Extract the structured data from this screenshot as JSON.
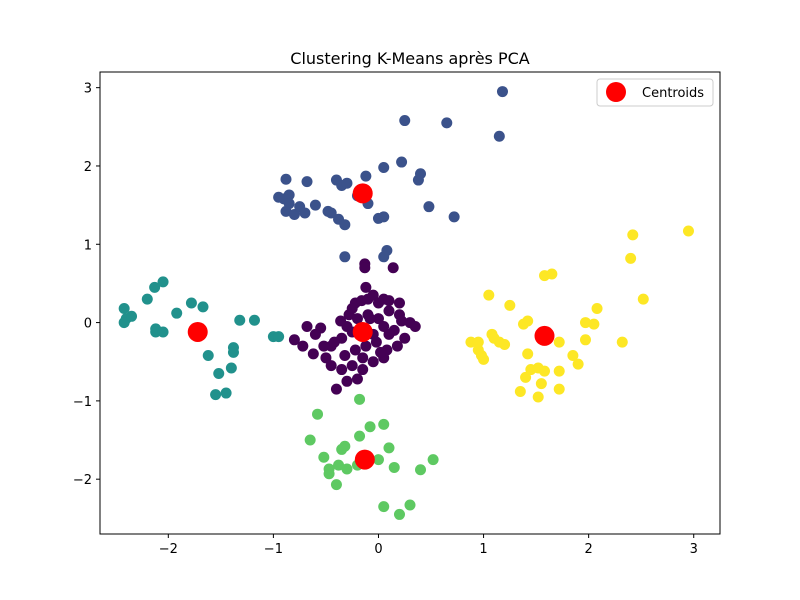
{
  "chart_data": {
    "type": "scatter",
    "title": "Clustering K-Means après PCA",
    "xlabel": "",
    "ylabel": "",
    "xlim": [
      -2.65,
      3.25
    ],
    "ylim": [
      -2.7,
      3.2
    ],
    "xticks": [
      -2,
      -1,
      0,
      1,
      2,
      3
    ],
    "yticks": [
      -2,
      -1,
      0,
      1,
      2,
      3
    ],
    "xtick_labels": [
      "−2",
      "−1",
      "0",
      "1",
      "2",
      "3"
    ],
    "ytick_labels": [
      "−2",
      "−1",
      "0",
      "1",
      "2",
      "3"
    ],
    "grid": false,
    "legend": {
      "position": "top-right",
      "label": "Centroids",
      "color": "#ff0000"
    },
    "clusters": [
      {
        "color": "#440154",
        "points": [
          [
            -0.28,
            0.1
          ],
          [
            -0.22,
            0.25
          ],
          [
            -0.16,
            0.28
          ],
          [
            -0.1,
            0.3
          ],
          [
            -0.05,
            0.35
          ],
          [
            0.0,
            0.25
          ],
          [
            0.05,
            0.3
          ],
          [
            -0.12,
            0.45
          ],
          [
            0.1,
            0.28
          ],
          [
            -0.3,
            -0.05
          ],
          [
            -0.2,
            0.05
          ],
          [
            -0.1,
            0.1
          ],
          [
            0.0,
            0.05
          ],
          [
            0.1,
            0.15
          ],
          [
            0.2,
            0.1
          ],
          [
            0.3,
            0.0
          ],
          [
            -0.55,
            -0.07
          ],
          [
            -0.45,
            -0.3
          ],
          [
            -0.35,
            -0.2
          ],
          [
            -0.25,
            -0.12
          ],
          [
            -0.15,
            -0.1
          ],
          [
            -0.05,
            -0.15
          ],
          [
            0.05,
            -0.05
          ],
          [
            0.15,
            -0.1
          ],
          [
            0.25,
            -0.2
          ],
          [
            -0.72,
            -0.3
          ],
          [
            -0.62,
            -0.4
          ],
          [
            -0.52,
            -0.3
          ],
          [
            -0.42,
            -0.25
          ],
          [
            -0.32,
            -0.42
          ],
          [
            -0.22,
            -0.35
          ],
          [
            -0.12,
            -0.3
          ],
          [
            -0.02,
            -0.25
          ],
          [
            0.08,
            -0.35
          ],
          [
            0.18,
            -0.3
          ],
          [
            -0.45,
            -0.55
          ],
          [
            -0.35,
            -0.6
          ],
          [
            -0.25,
            -0.55
          ],
          [
            -0.15,
            -0.45
          ],
          [
            -0.05,
            -0.5
          ],
          [
            0.05,
            -0.45
          ],
          [
            -0.3,
            -0.75
          ],
          [
            -0.2,
            -0.72
          ],
          [
            -0.15,
            -0.6
          ],
          [
            -0.4,
            -0.85
          ],
          [
            -0.6,
            -0.15
          ],
          [
            0.22,
            0.02
          ],
          [
            -0.13,
            0.75
          ],
          [
            -0.13,
            0.7
          ],
          [
            0.14,
            0.7
          ],
          [
            -0.8,
            -0.22
          ],
          [
            -0.68,
            -0.05
          ],
          [
            0.35,
            -0.05
          ],
          [
            0.1,
            -0.15
          ],
          [
            -0.08,
            0.05
          ],
          [
            -0.36,
            0.02
          ],
          [
            0.02,
            -0.38
          ],
          [
            -0.5,
            -0.45
          ],
          [
            0.2,
            0.25
          ],
          [
            -0.25,
            0.18
          ]
        ]
      },
      {
        "color": "#3b528b",
        "points": [
          [
            -0.88,
            1.83
          ],
          [
            -0.85,
            1.63
          ],
          [
            -0.9,
            1.58
          ],
          [
            -0.85,
            1.52
          ],
          [
            -0.88,
            1.42
          ],
          [
            -0.8,
            1.38
          ],
          [
            -0.75,
            1.48
          ],
          [
            -0.68,
            1.8
          ],
          [
            -0.6,
            1.5
          ],
          [
            -0.48,
            1.42
          ],
          [
            -0.45,
            1.4
          ],
          [
            -0.4,
            1.82
          ],
          [
            -0.35,
            1.75
          ],
          [
            -0.3,
            1.78
          ],
          [
            -0.38,
            1.32
          ],
          [
            -0.32,
            1.25
          ],
          [
            -0.2,
            1.62
          ],
          [
            -0.12,
            1.87
          ],
          [
            -0.1,
            1.52
          ],
          [
            0.0,
            1.33
          ],
          [
            0.05,
            1.35
          ],
          [
            0.05,
            1.98
          ],
          [
            0.22,
            2.05
          ],
          [
            0.25,
            2.58
          ],
          [
            0.38,
            1.82
          ],
          [
            0.4,
            1.9
          ],
          [
            0.48,
            1.48
          ],
          [
            0.65,
            2.55
          ],
          [
            0.72,
            1.35
          ],
          [
            1.15,
            2.38
          ],
          [
            1.18,
            2.95
          ],
          [
            -0.32,
            0.84
          ],
          [
            0.05,
            0.84
          ],
          [
            0.08,
            0.92
          ],
          [
            -0.95,
            1.6
          ],
          [
            -0.7,
            1.4
          ]
        ]
      },
      {
        "color": "#21918c",
        "points": [
          [
            -2.42,
            0.18
          ],
          [
            -2.4,
            0.05
          ],
          [
            -2.42,
            0.0
          ],
          [
            -2.35,
            0.08
          ],
          [
            -2.2,
            0.3
          ],
          [
            -2.13,
            0.45
          ],
          [
            -2.05,
            0.52
          ],
          [
            -1.92,
            0.12
          ],
          [
            -2.12,
            -0.08
          ],
          [
            -2.12,
            -0.12
          ],
          [
            -2.05,
            -0.12
          ],
          [
            -1.78,
            0.25
          ],
          [
            -1.67,
            0.2
          ],
          [
            -1.75,
            -0.1
          ],
          [
            -1.62,
            -0.42
          ],
          [
            -1.52,
            -0.65
          ],
          [
            -1.55,
            -0.92
          ],
          [
            -1.45,
            -0.9
          ],
          [
            -1.4,
            -0.58
          ],
          [
            -1.38,
            -0.38
          ],
          [
            -1.38,
            -0.32
          ],
          [
            -1.32,
            0.03
          ],
          [
            -1.18,
            0.03
          ],
          [
            -1.0,
            -0.18
          ],
          [
            -0.95,
            -0.18
          ]
        ]
      },
      {
        "color": "#5ec962",
        "points": [
          [
            -0.58,
            -1.17
          ],
          [
            -0.65,
            -1.5
          ],
          [
            -0.52,
            -1.72
          ],
          [
            -0.47,
            -1.87
          ],
          [
            -0.47,
            -1.93
          ],
          [
            -0.4,
            -2.07
          ],
          [
            -0.38,
            -1.82
          ],
          [
            -0.32,
            -1.58
          ],
          [
            -0.3,
            -1.87
          ],
          [
            -0.35,
            -1.62
          ],
          [
            -0.18,
            -1.45
          ],
          [
            -0.18,
            -0.98
          ],
          [
            -0.08,
            -1.33
          ],
          [
            0.0,
            -1.75
          ],
          [
            0.05,
            -1.3
          ],
          [
            0.1,
            -1.6
          ],
          [
            0.15,
            -1.85
          ],
          [
            0.05,
            -2.35
          ],
          [
            0.2,
            -2.45
          ],
          [
            0.3,
            -2.33
          ],
          [
            0.4,
            -1.88
          ],
          [
            0.52,
            -1.75
          ],
          [
            -0.2,
            -1.82
          ]
        ]
      },
      {
        "color": "#fde725",
        "points": [
          [
            0.88,
            -0.25
          ],
          [
            0.95,
            -0.25
          ],
          [
            0.95,
            -0.35
          ],
          [
            0.98,
            -0.42
          ],
          [
            1.0,
            -0.47
          ],
          [
            1.05,
            0.35
          ],
          [
            1.08,
            -0.15
          ],
          [
            1.1,
            -0.2
          ],
          [
            1.15,
            -0.25
          ],
          [
            1.2,
            -0.28
          ],
          [
            1.25,
            0.22
          ],
          [
            1.35,
            -0.88
          ],
          [
            1.38,
            -0.02
          ],
          [
            1.4,
            -0.7
          ],
          [
            1.42,
            0.02
          ],
          [
            1.42,
            -0.4
          ],
          [
            1.45,
            -0.6
          ],
          [
            1.52,
            -0.58
          ],
          [
            1.52,
            -0.95
          ],
          [
            1.55,
            -0.78
          ],
          [
            1.58,
            -0.62
          ],
          [
            1.58,
            0.6
          ],
          [
            1.65,
            0.62
          ],
          [
            1.72,
            -0.25
          ],
          [
            1.72,
            -0.62
          ],
          [
            1.72,
            -0.85
          ],
          [
            1.85,
            -0.42
          ],
          [
            1.9,
            -0.53
          ],
          [
            1.97,
            0.0
          ],
          [
            1.97,
            -0.22
          ],
          [
            2.05,
            -0.02
          ],
          [
            2.08,
            0.18
          ],
          [
            2.32,
            -0.25
          ],
          [
            2.4,
            0.82
          ],
          [
            2.42,
            1.12
          ],
          [
            2.52,
            0.3
          ],
          [
            2.95,
            1.17
          ]
        ]
      }
    ],
    "centroids": [
      [
        -0.15,
        1.65
      ],
      [
        -0.15,
        -0.12
      ],
      [
        -1.72,
        -0.12
      ],
      [
        -0.13,
        -1.75
      ],
      [
        1.58,
        -0.17
      ]
    ]
  }
}
